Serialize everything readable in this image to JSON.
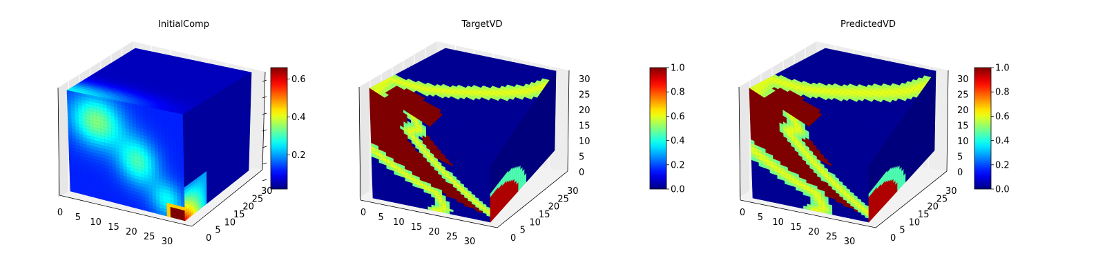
{
  "colormap": "jet",
  "colors": {
    "pane_left": "#e7e7e7",
    "pane_right": "#ededed",
    "pane_floor": "#f2f2f2",
    "grid": "#ffffff",
    "axis_line": "#000000"
  },
  "chart_data": [
    {
      "type": "voxel-3d",
      "title": "InitialComp",
      "field": "initial",
      "x_ticks": [
        "0",
        "5",
        "10",
        "15",
        "20",
        "25",
        "30"
      ],
      "y_ticks": [
        "0",
        "5",
        "10",
        "15",
        "20",
        "25",
        "30"
      ],
      "z_ticks": [],
      "grid_size": 32,
      "colorbar": {
        "min": 0.02,
        "max": 0.66,
        "ticks": [
          "0.2",
          "0.4",
          "0.6"
        ],
        "tick_values": [
          0.2,
          0.4,
          0.6
        ]
      }
    },
    {
      "type": "voxel-3d",
      "title": "TargetVD",
      "field": "target",
      "x_ticks": [
        "0",
        "5",
        "10",
        "15",
        "20",
        "25",
        "30"
      ],
      "y_ticks": [
        "0",
        "5",
        "10",
        "15",
        "20",
        "25",
        "30"
      ],
      "z_ticks": [
        "0",
        "5",
        "10",
        "15",
        "20",
        "25",
        "30"
      ],
      "grid_size": 32,
      "colorbar": {
        "min": 0.0,
        "max": 1.0,
        "ticks": [
          "0.0",
          "0.2",
          "0.4",
          "0.6",
          "0.8",
          "1.0"
        ],
        "tick_values": [
          0.0,
          0.2,
          0.4,
          0.6,
          0.8,
          1.0
        ]
      }
    },
    {
      "type": "voxel-3d",
      "title": "PredictedVD",
      "field": "predicted",
      "x_ticks": [
        "0",
        "5",
        "10",
        "15",
        "20",
        "25",
        "30"
      ],
      "y_ticks": [
        "0",
        "5",
        "10",
        "15",
        "20",
        "25",
        "30"
      ],
      "z_ticks": [
        "0",
        "5",
        "10",
        "15",
        "20",
        "25",
        "30"
      ],
      "grid_size": 32,
      "colorbar": {
        "min": 0.0,
        "max": 1.0,
        "ticks": [
          "0.0",
          "0.2",
          "0.4",
          "0.6",
          "0.8",
          "1.0"
        ],
        "tick_values": [
          0.0,
          0.2,
          0.4,
          0.6,
          0.8,
          1.0
        ]
      }
    }
  ]
}
